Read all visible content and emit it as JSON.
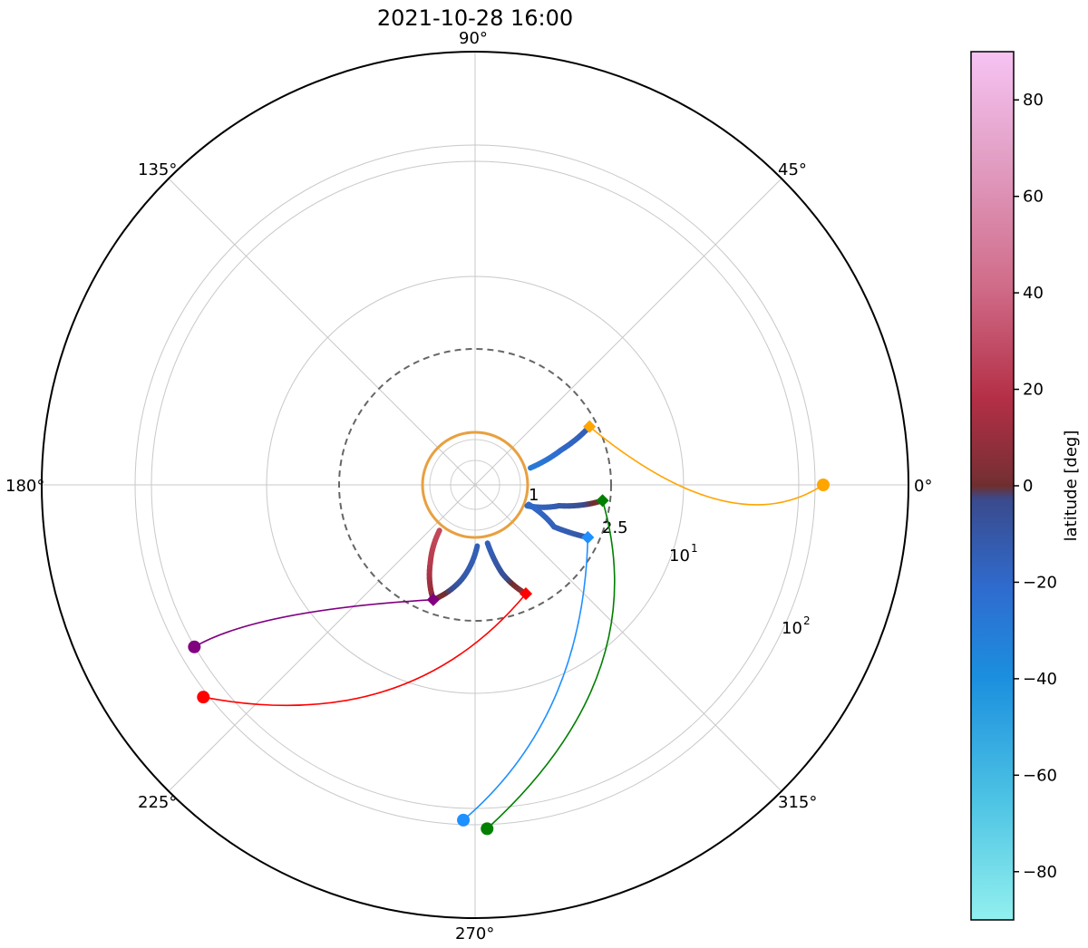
{
  "chart_data": {
    "type": "scatter",
    "projection": "polar",
    "title": "2021-10-28 16:00",
    "angle_ticks": [
      "0°",
      "45°",
      "90°",
      "135°",
      "180°",
      "225°",
      "270°",
      "315°"
    ],
    "radial_scale": "log",
    "radial_tick_labels": [
      "1",
      "2.5",
      "10",
      "1",
      "10",
      "2"
    ],
    "radial_ticks": [
      1,
      2.5,
      10,
      100
    ],
    "reference_circle_radius": 1,
    "dashed_circle_radius": 2.5,
    "colorbar": {
      "label": "latitude [deg]",
      "range": [
        -90,
        90
      ],
      "ticks": [
        "80",
        "60",
        "40",
        "20",
        "0",
        "−20",
        "−40",
        "−60",
        "−80"
      ],
      "tick_values": [
        80,
        60,
        40,
        20,
        0,
        -20,
        -40,
        -60,
        -80
      ],
      "colors": [
        "#f6c3f3",
        "#e4a3c9",
        "#d06c89",
        "#b42f46",
        "#6e2e2e",
        "#3a4a8c",
        "#2b74d6",
        "#1b8fde",
        "#92f0ee"
      ]
    },
    "series": [
      {
        "color": "#ffa500",
        "observer": {
          "lon_deg": 0,
          "r": 160
        },
        "footpoint": {
          "lon_deg": 27,
          "r": 2.3
        },
        "field_line": {
          "lon_deg": [
            27,
            22,
            17
          ],
          "r": [
            2.3,
            1.55,
            1.06
          ],
          "lat_deg": [
            -12,
            -18,
            -28
          ]
        }
      },
      {
        "color": "#008000",
        "observer": {
          "lon_deg": 272,
          "r": 148
        },
        "footpoint": {
          "lon_deg": 353,
          "r": 2.3
        },
        "field_line": {
          "lon_deg": [
            353,
            346,
            338
          ],
          "r": [
            2.3,
            1.45,
            1.04
          ],
          "lat_deg": [
            5,
            -10,
            -18
          ]
        }
      },
      {
        "color": "#1e90ff",
        "observer": {
          "lon_deg": 268,
          "r": 125
        },
        "footpoint": {
          "lon_deg": 335,
          "r": 2.2
        },
        "field_line": {
          "lon_deg": [
            335,
            332,
            340
          ],
          "r": [
            2.2,
            1.5,
            1.05
          ],
          "lat_deg": [
            -8,
            -14,
            -18
          ]
        }
      },
      {
        "color": "#ff0000",
        "observer": {
          "lon_deg": 218,
          "r": 150
        },
        "footpoint": {
          "lon_deg": 295,
          "r": 2.1
        },
        "field_line": {
          "lon_deg": [
            295,
            287,
            282
          ],
          "r": [
            2.1,
            1.55,
            1.08
          ],
          "lat_deg": [
            12,
            -6,
            -14
          ]
        }
      },
      {
        "color": "#800080",
        "observer": {
          "lon_deg": 210,
          "r": 100
        },
        "footpoint": {
          "lon_deg": 250,
          "r": 2.15
        },
        "field_line_a": {
          "lon_deg": [
            250,
            262,
            272
          ],
          "r": [
            2.15,
            1.6,
            1.1
          ],
          "lat_deg": [
            8,
            -10,
            -14
          ]
        },
        "field_line_b": {
          "lon_deg": [
            250,
            240,
            232
          ],
          "r": [
            2.15,
            1.5,
            1.06
          ],
          "lat_deg": [
            5,
            22,
            30
          ]
        }
      }
    ]
  }
}
